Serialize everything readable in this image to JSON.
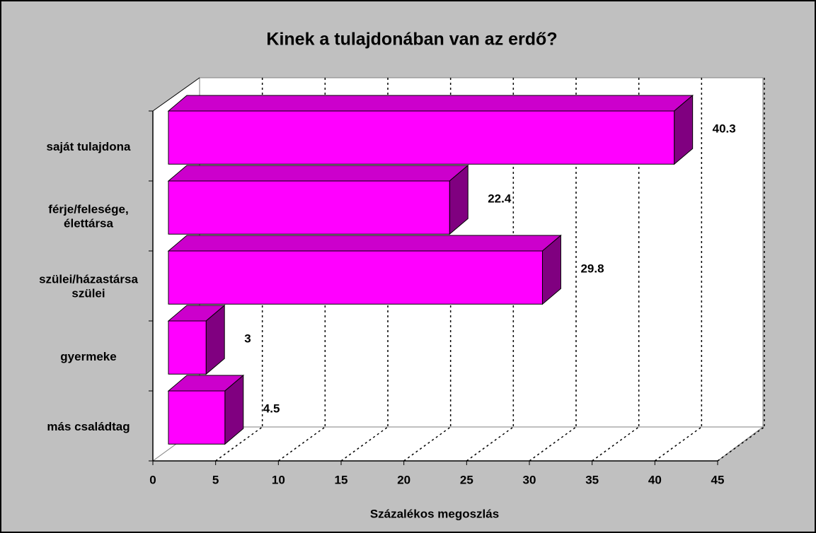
{
  "chart_data": {
    "type": "bar",
    "orientation": "horizontal",
    "title": "Kinek a tulajdonában van az erdő?",
    "x_label": "Százalékos megoszlás",
    "categories": [
      "saját tulajdona",
      "férje/felesége,\nélettársa",
      "szülei/házastársa\nszülei",
      "gyermeke",
      "más családtag"
    ],
    "values": [
      40.3,
      22.4,
      29.8,
      3,
      4.5
    ],
    "color": "#ff00ff",
    "xlim": [
      0,
      45
    ],
    "xticks": [
      0,
      5,
      10,
      15,
      20,
      25,
      30,
      35,
      40,
      45
    ],
    "grid": true
  }
}
